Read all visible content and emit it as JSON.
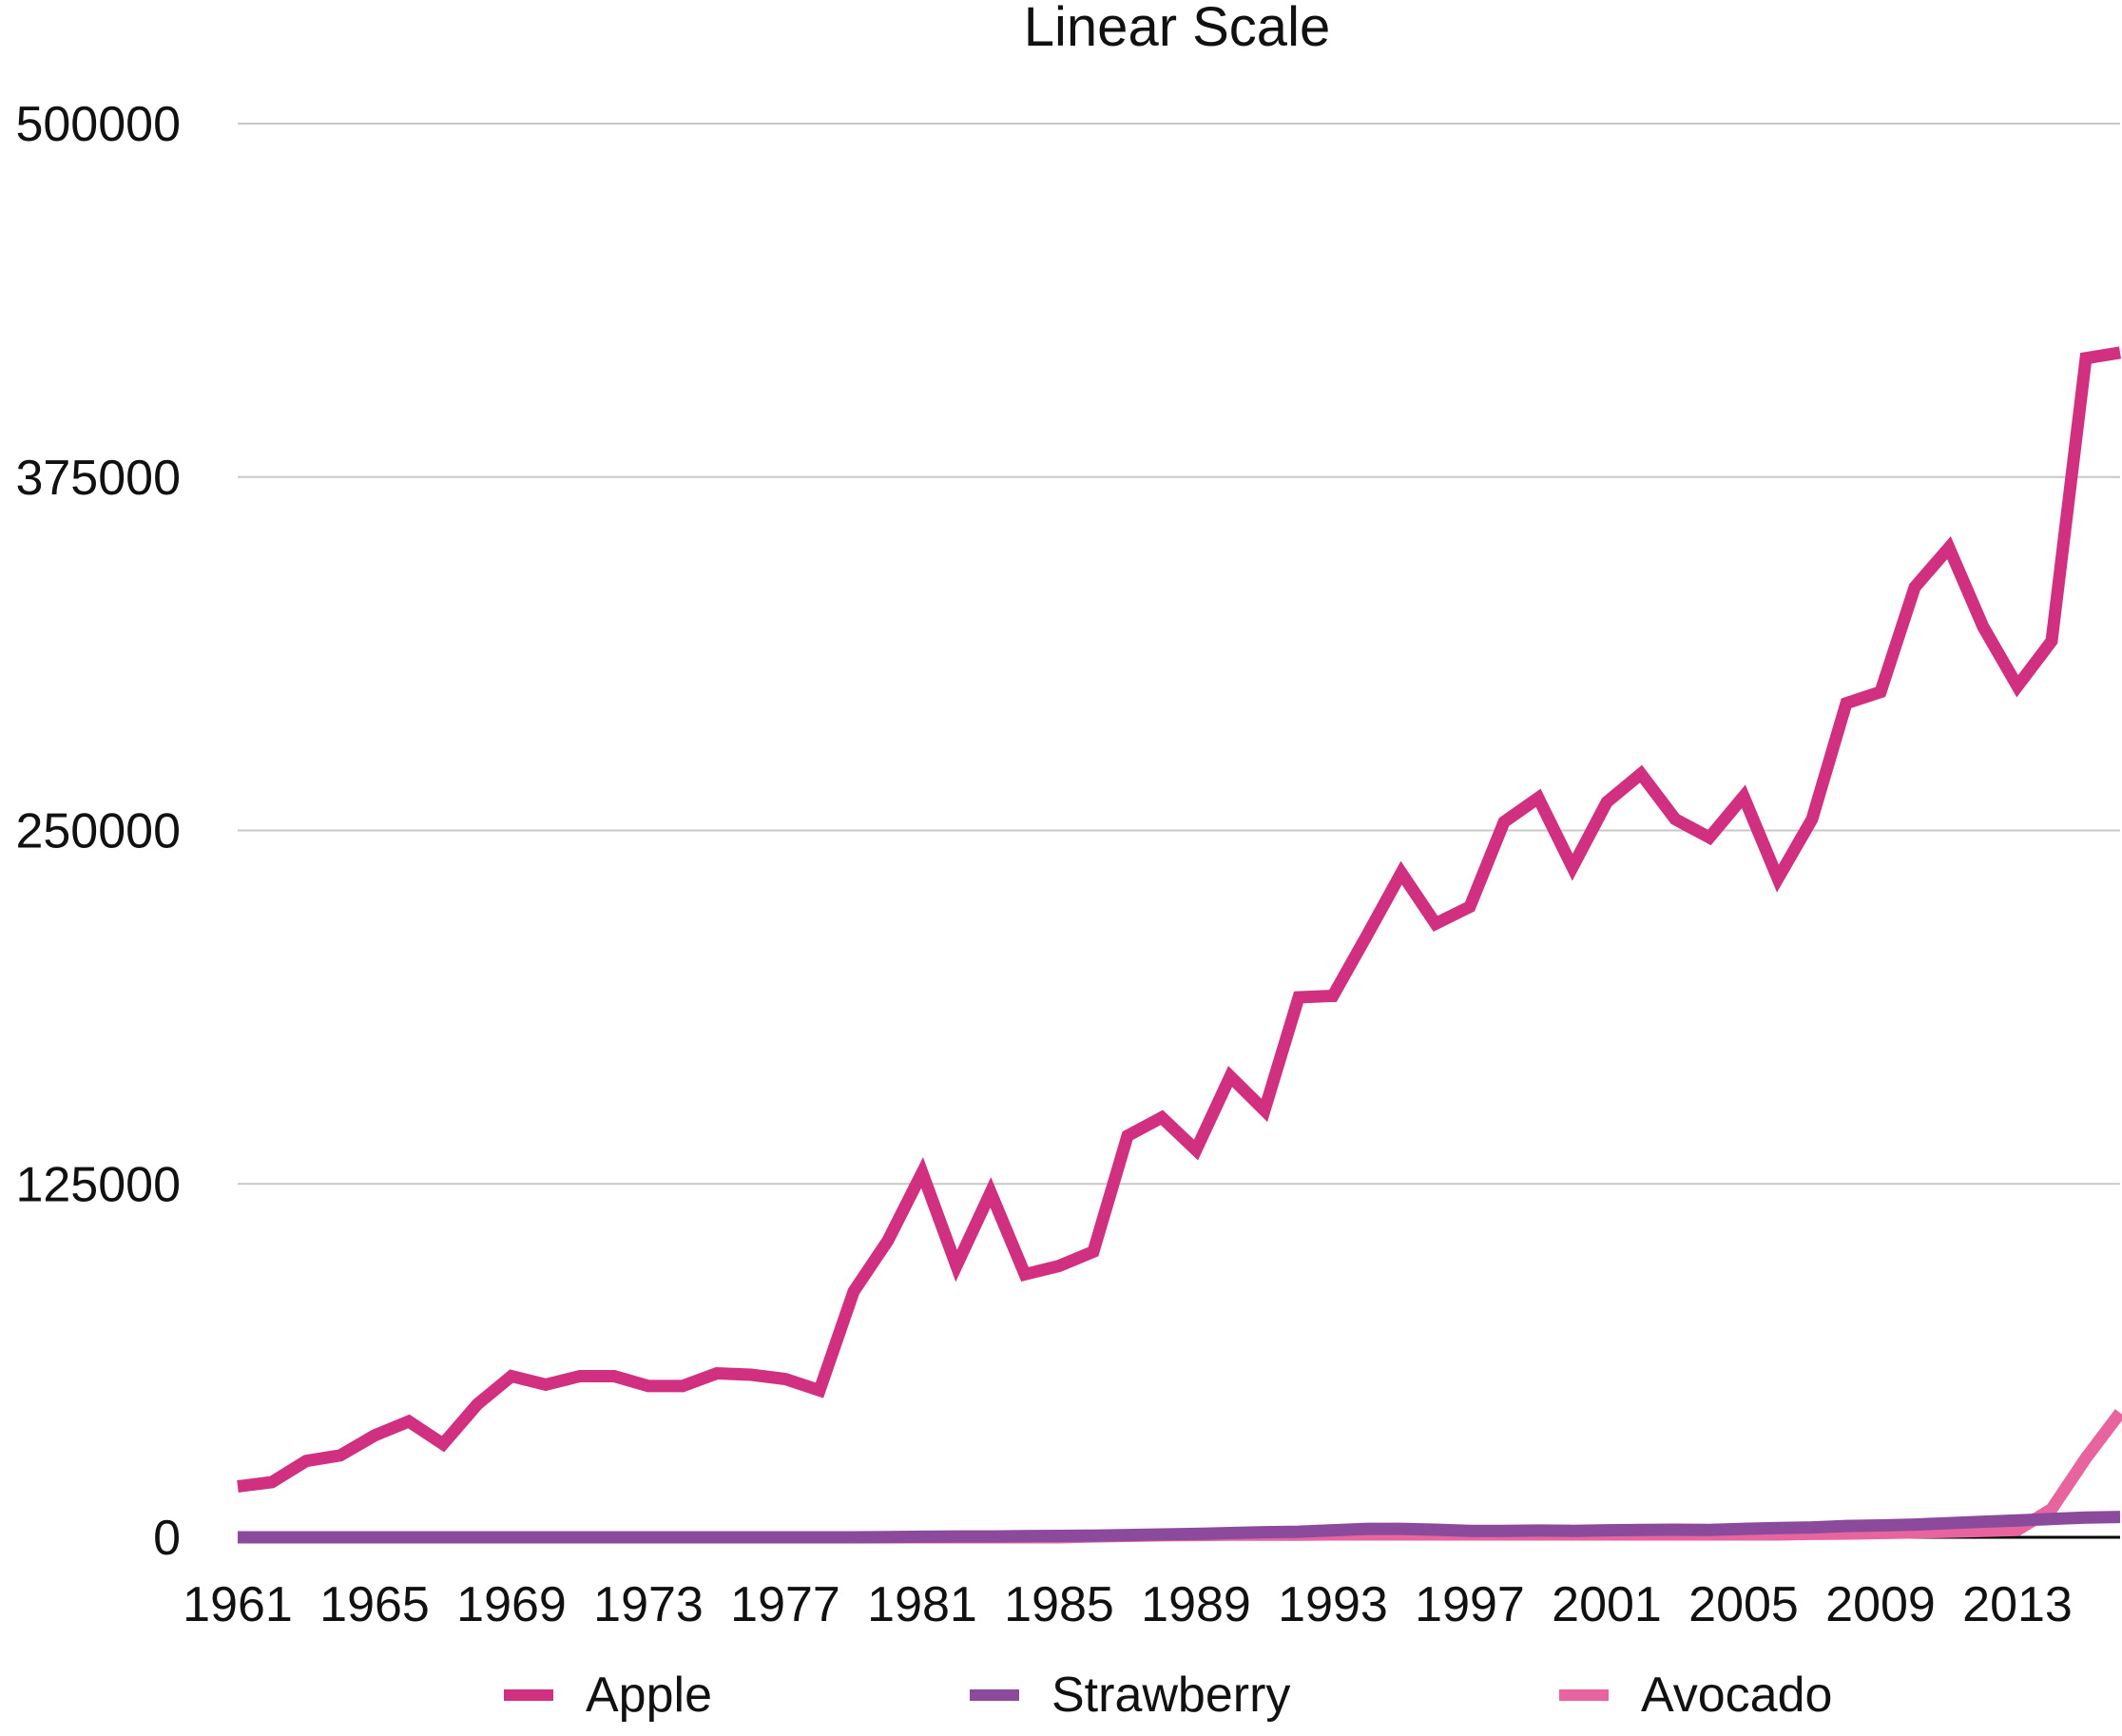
{
  "chart_data": {
    "type": "line",
    "title": "Linear Scale",
    "xlabel": "",
    "ylabel": "",
    "ylim": [
      0,
      500000
    ],
    "yticks": [
      "500000",
      "375000",
      "250000",
      "125000",
      "0"
    ],
    "xticks": [
      "1961",
      "1965",
      "1969",
      "1973",
      "1977",
      "1981",
      "1985",
      "1989",
      "1993",
      "1997",
      "2001",
      "2005",
      "2009",
      "2013"
    ],
    "grid": true,
    "legend_position": "bottom",
    "x": [
      1961,
      1962,
      1963,
      1964,
      1965,
      1966,
      1967,
      1968,
      1969,
      1970,
      1971,
      1972,
      1973,
      1974,
      1975,
      1976,
      1977,
      1978,
      1979,
      1980,
      1981,
      1982,
      1983,
      1984,
      1985,
      1986,
      1987,
      1988,
      1989,
      1990,
      1991,
      1992,
      1993,
      1994,
      1995,
      1996,
      1997,
      1998,
      1999,
      2000,
      2001,
      2002,
      2003,
      2004,
      2005,
      2006,
      2007,
      2008,
      2009,
      2010,
      2011,
      2012,
      2013,
      2014,
      2015,
      2016
    ],
    "series": [
      {
        "name": "Apple",
        "color": "#d0307f",
        "values": [
          18000,
          19500,
          27000,
          29000,
          36000,
          41000,
          33000,
          47000,
          57000,
          54000,
          57000,
          57000,
          53500,
          53500,
          58000,
          57500,
          56000,
          52000,
          87000,
          105000,
          129000,
          96000,
          122000,
          93000,
          96000,
          101000,
          142000,
          148500,
          137000,
          163000,
          151000,
          191000,
          191500,
          213000,
          235000,
          217000,
          223000,
          253000,
          261500,
          237000,
          260000,
          270000,
          254000,
          247500,
          262000,
          233000,
          254000,
          295000,
          299000,
          336000,
          350000,
          322000,
          301000,
          317000,
          417000,
          419000
        ]
      },
      {
        "name": "Strawberry",
        "color": "#8b4a9c",
        "values": [
          0,
          0,
          0,
          0,
          0,
          0,
          0,
          0,
          0,
          0,
          0,
          0,
          0,
          0,
          0,
          0,
          0,
          0,
          0,
          100,
          200,
          300,
          300,
          400,
          500,
          600,
          800,
          1000,
          1200,
          1500,
          1800,
          2000,
          2500,
          3000,
          3000,
          2700,
          2300,
          2300,
          2400,
          2300,
          2500,
          2600,
          2700,
          2600,
          3000,
          3300,
          3500,
          4000,
          4200,
          4500,
          5000,
          5500,
          6000,
          6500,
          7000,
          7200
        ]
      },
      {
        "name": "Avocado",
        "color": "#e8649e",
        "values": [
          0,
          0,
          0,
          0,
          0,
          0,
          0,
          0,
          0,
          0,
          0,
          0,
          0,
          0,
          0,
          0,
          0,
          0,
          0,
          0,
          0,
          0,
          0,
          0,
          0,
          300,
          500,
          700,
          800,
          900,
          900,
          900,
          1000,
          1000,
          1000,
          1000,
          1000,
          1000,
          1000,
          1000,
          1000,
          1000,
          1000,
          1000,
          1000,
          1000,
          1200,
          1300,
          1500,
          1700,
          2000,
          2300,
          2600,
          10000,
          28000,
          44000
        ]
      }
    ]
  }
}
